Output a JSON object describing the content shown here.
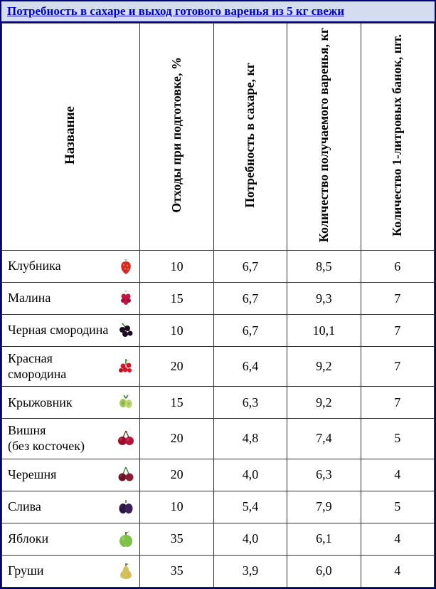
{
  "title": "Потребность в сахаре и выход готового варенья из 5 кг свежи",
  "headers": {
    "name": "Название",
    "waste": "Отходы\nпри подготовке, %",
    "sugar": "Потребность\nв сахаре, кг",
    "jam": "Количество\nполучаемого\nваренья, кг",
    "jars": "Количество\n1-литровых\nбанок, шт."
  },
  "rows": [
    {
      "name": "Клубника",
      "icon": "strawberry",
      "waste": "10",
      "sugar": "6,7",
      "jam": "8,5",
      "jars": "6"
    },
    {
      "name": "Малина",
      "icon": "raspberry",
      "waste": "15",
      "sugar": "6,7",
      "jam": "9,3",
      "jars": "7"
    },
    {
      "name": "Черная смородина",
      "icon": "blackcurrant",
      "waste": "10",
      "sugar": "6,7",
      "jam": "10,1",
      "jars": "7"
    },
    {
      "name": "Красная смородина",
      "icon": "redcurrant",
      "waste": "20",
      "sugar": "6,4",
      "jam": "9,2",
      "jars": "7"
    },
    {
      "name": "Крыжовник",
      "icon": "gooseberry",
      "waste": "15",
      "sugar": "6,3",
      "jam": "9,2",
      "jars": "7"
    },
    {
      "name": "Вишня\n(без косточек)",
      "icon": "cherry",
      "waste": "20",
      "sugar": "4,8",
      "jam": "7,4",
      "jars": "5"
    },
    {
      "name": "Черешня",
      "icon": "sweetcherry",
      "waste": "20",
      "sugar": "4,0",
      "jam": "6,3",
      "jars": "4"
    },
    {
      "name": "Слива",
      "icon": "plum",
      "waste": "10",
      "sugar": "5,4",
      "jam": "7,9",
      "jars": "5"
    },
    {
      "name": "Яблоки",
      "icon": "apple",
      "waste": "35",
      "sugar": "4,0",
      "jam": "6,1",
      "jars": "4"
    },
    {
      "name": "Груши",
      "icon": "pear",
      "waste": "35",
      "sugar": "3,9",
      "jam": "6,0",
      "jars": "4"
    }
  ],
  "colors": {
    "title_bg": "#d4ddf0",
    "link": "#0000cd",
    "border": "#000080"
  }
}
